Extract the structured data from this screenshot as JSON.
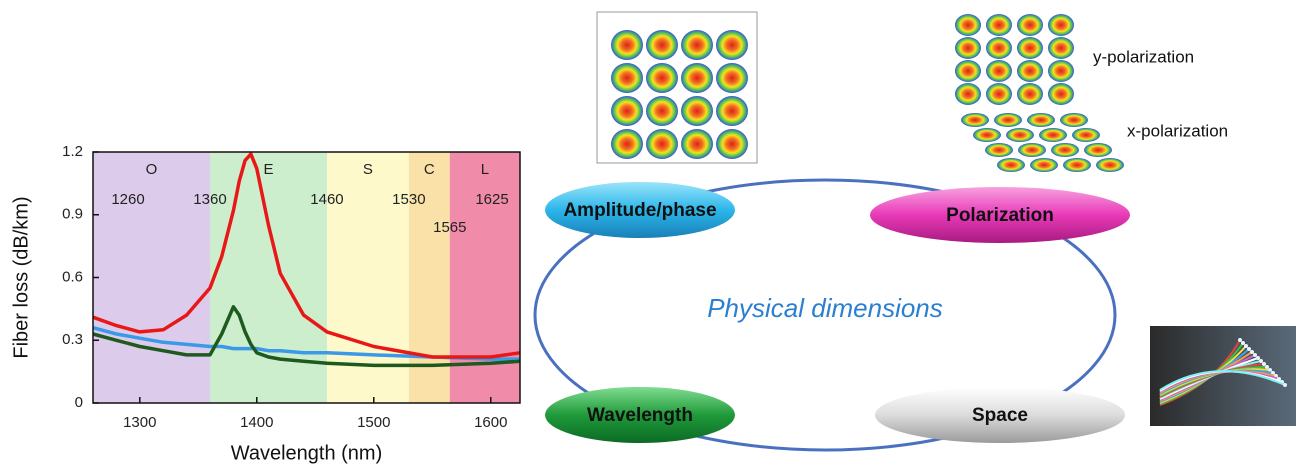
{
  "chart_data": {
    "type": "line",
    "xlabel": "Wavelength (nm)",
    "ylabel": "Fiber loss (dB/km)",
    "xlim": [
      1260,
      1625
    ],
    "xticks": [
      1300,
      1400,
      1500,
      1600
    ],
    "ylim": [
      0,
      1.2
    ],
    "yticks": [
      0,
      0.3,
      0.6,
      0.9,
      1.2
    ],
    "bands": [
      {
        "name": "O",
        "color": "#dccbea"
      },
      {
        "name": "E",
        "color": "#cdeecd"
      },
      {
        "name": "S",
        "color": "#fdf9cb"
      },
      {
        "name": "C",
        "color": "#f9e1a8"
      },
      {
        "name": "L",
        "color": "#f08caa"
      }
    ],
    "band_edges": [
      1260,
      1360,
      1460,
      1530,
      1565,
      1625
    ],
    "x": [
      1260,
      1280,
      1300,
      1320,
      1340,
      1360,
      1370,
      1380,
      1385,
      1390,
      1395,
      1400,
      1410,
      1420,
      1440,
      1460,
      1500,
      1550,
      1600,
      1625
    ],
    "series": [
      {
        "color": "#3a9ae8",
        "values": [
          0.36,
          0.33,
          0.31,
          0.29,
          0.28,
          0.27,
          0.27,
          0.26,
          0.26,
          0.26,
          0.26,
          0.26,
          0.25,
          0.25,
          0.24,
          0.24,
          0.23,
          0.22,
          0.21,
          0.21
        ]
      },
      {
        "color": "#1e5a1e",
        "values": [
          0.33,
          0.3,
          0.27,
          0.25,
          0.23,
          0.23,
          0.33,
          0.46,
          0.42,
          0.34,
          0.28,
          0.24,
          0.22,
          0.21,
          0.2,
          0.19,
          0.18,
          0.18,
          0.19,
          0.2
        ]
      },
      {
        "color": "#e81818",
        "values": [
          0.41,
          0.37,
          0.34,
          0.35,
          0.42,
          0.55,
          0.7,
          0.92,
          1.06,
          1.16,
          1.19,
          1.12,
          0.85,
          0.62,
          0.42,
          0.34,
          0.27,
          0.22,
          0.22,
          0.24
        ]
      }
    ]
  },
  "diagram": {
    "center": "Physical dimensions",
    "nodes": [
      {
        "label": "Amplitude/phase"
      },
      {
        "label": "Polarization"
      },
      {
        "label": "Wavelength"
      },
      {
        "label": "Space"
      }
    ],
    "annotations": [
      "y-polarization",
      "x-polarization"
    ]
  }
}
